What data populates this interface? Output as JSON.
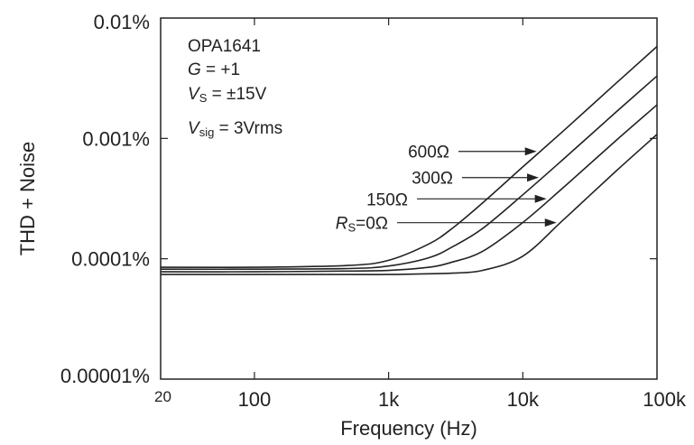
{
  "chart_data": {
    "type": "line",
    "x_scale": "log",
    "y_scale": "log",
    "xlim": [
      20,
      100000
    ],
    "ylim": [
      1e-05,
      0.01
    ],
    "xlabel": "Frequency (Hz)",
    "ylabel": "THD + Noise",
    "x_ticks": [
      {
        "value": 20,
        "label": "20"
      },
      {
        "value": 100,
        "label": "100"
      },
      {
        "value": 1000,
        "label": "1k"
      },
      {
        "value": 10000,
        "label": "10k"
      },
      {
        "value": 100000,
        "label": "100k"
      }
    ],
    "y_ticks": [
      {
        "value": 0.01,
        "label": "0.01%"
      },
      {
        "value": 0.001,
        "label": "0.001%"
      },
      {
        "value": 0.0001,
        "label": "0.0001%"
      },
      {
        "value": 1e-05,
        "label": "0.00001%"
      }
    ],
    "grid": false,
    "info_box": {
      "device": "OPA1641",
      "gain": {
        "var": "G",
        "rest": " = +1"
      },
      "supply": {
        "var": "V",
        "sub": "S",
        "rest": " = ±15V"
      },
      "signal": {
        "var": "V",
        "sub": "sig",
        "rest": " = 3Vrms"
      }
    },
    "series": [
      {
        "name": "600Ω",
        "x": [
          20,
          100,
          500,
          1000,
          2000,
          3000,
          5000,
          10000,
          20000,
          50000,
          100000
        ],
        "values": [
          8.5e-05,
          8.5e-05,
          8.8e-05,
          9.7e-05,
          0.000133,
          0.00018,
          0.00029,
          0.00058,
          0.00115,
          0.0029,
          0.0058
        ]
      },
      {
        "name": "300Ω",
        "x": [
          20,
          100,
          500,
          1000,
          2000,
          3000,
          5000,
          10000,
          20000,
          50000,
          100000
        ],
        "values": [
          8.2e-05,
          8.2e-05,
          8.3e-05,
          8.7e-05,
          0.000102,
          0.000126,
          0.000178,
          0.00034,
          0.00067,
          0.00167,
          0.0033
        ]
      },
      {
        "name": "150Ω",
        "x": [
          20,
          100,
          500,
          1000,
          2000,
          3000,
          5000,
          10000,
          20000,
          50000,
          100000
        ],
        "values": [
          7.8e-05,
          7.8e-05,
          7.9e-05,
          8e-05,
          8.5e-05,
          9.4e-05,
          0.000115,
          0.0002,
          0.00039,
          0.00097,
          0.0019
        ]
      },
      {
        "name": "0Ω",
        "label_prefix": {
          "var": "R",
          "sub": "S",
          "rest": "=0Ω"
        },
        "x": [
          20,
          100,
          500,
          1000,
          2000,
          3000,
          5000,
          10000,
          20000,
          50000,
          100000
        ],
        "values": [
          7.4e-05,
          7.4e-05,
          7.4e-05,
          7.4e-05,
          7.5e-05,
          7.6e-05,
          8e-05,
          0.000105,
          0.00021,
          0.00054,
          0.00108
        ]
      }
    ],
    "arrows": [
      {
        "series": "600Ω",
        "label": "600Ω",
        "at_x": 13500
      },
      {
        "series": "300Ω",
        "label": "300Ω",
        "at_x": 14000
      },
      {
        "series": "150Ω",
        "label": "150Ω",
        "at_x": 16000
      },
      {
        "series": "0Ω",
        "label": "RS=0Ω",
        "at_x": 19000
      }
    ]
  }
}
